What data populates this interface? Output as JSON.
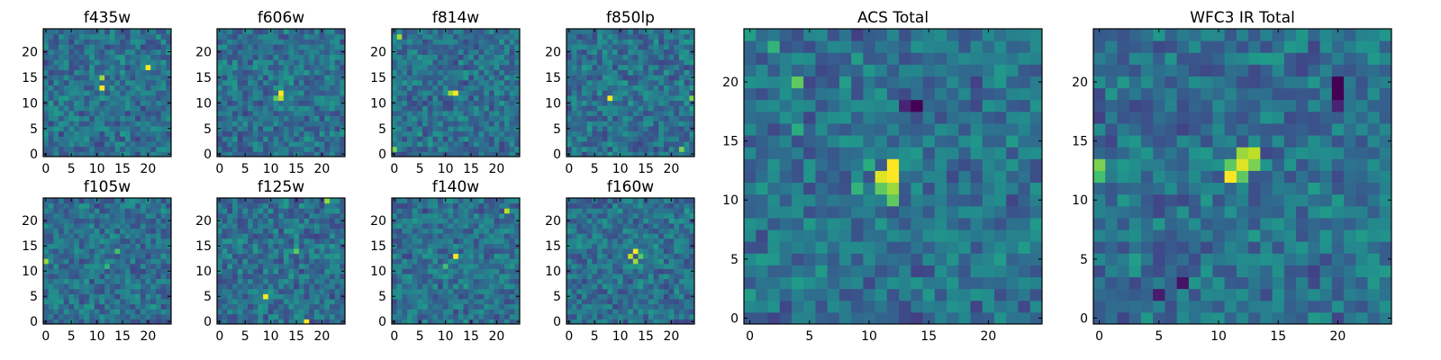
{
  "chart_data": {
    "type": "heatmap",
    "colormap": "viridis",
    "grid": false,
    "panels": [
      {
        "id": "f435w",
        "title": "f435w",
        "pixels": 25,
        "xticks": [
          0,
          5,
          10,
          15,
          20
        ],
        "yticks": [
          0,
          5,
          10,
          15,
          20
        ],
        "xlim": [
          -0.5,
          24.5
        ],
        "ylim": [
          -0.5,
          24.5
        ],
        "features": [
          {
            "x": 11,
            "y": 13,
            "value": 1.0
          },
          {
            "x": 11,
            "y": 15,
            "value": 0.85
          },
          {
            "x": 20,
            "y": 17,
            "value": 1.0
          }
        ],
        "noise_seed": 11
      },
      {
        "id": "f606w",
        "title": "f606w",
        "pixels": 25,
        "xticks": [
          0,
          5,
          10,
          15,
          20
        ],
        "yticks": [
          0,
          5,
          10,
          15,
          20
        ],
        "xlim": [
          -0.5,
          24.5
        ],
        "ylim": [
          -0.5,
          24.5
        ],
        "features": [
          {
            "x": 12,
            "y": 12,
            "value": 1.0
          },
          {
            "x": 12,
            "y": 11,
            "value": 0.9
          },
          {
            "x": 11,
            "y": 11,
            "value": 0.75
          }
        ],
        "noise_seed": 23
      },
      {
        "id": "f814w",
        "title": "f814w",
        "pixels": 25,
        "xticks": [
          0,
          5,
          10,
          15,
          20
        ],
        "yticks": [
          0,
          5,
          10,
          15,
          20
        ],
        "xlim": [
          -0.5,
          24.5
        ],
        "ylim": [
          -0.5,
          24.5
        ],
        "features": [
          {
            "x": 12,
            "y": 12,
            "value": 1.0
          },
          {
            "x": 11,
            "y": 12,
            "value": 0.85
          },
          {
            "x": 1,
            "y": 23,
            "value": 0.85
          },
          {
            "x": 0,
            "y": 1,
            "value": 0.8
          }
        ],
        "noise_seed": 37
      },
      {
        "id": "f850lp",
        "title": "f850lp",
        "pixels": 25,
        "xticks": [
          0,
          5,
          10,
          15,
          20
        ],
        "yticks": [
          0,
          5,
          10,
          15,
          20
        ],
        "xlim": [
          -0.5,
          24.5
        ],
        "ylim": [
          -0.5,
          24.5
        ],
        "features": [
          {
            "x": 8,
            "y": 11,
            "value": 1.0
          },
          {
            "x": 24,
            "y": 11,
            "value": 0.8
          },
          {
            "x": 22,
            "y": 1,
            "value": 0.8
          }
        ],
        "noise_seed": 41
      },
      {
        "id": "f105w",
        "title": "f105w",
        "pixels": 25,
        "xticks": [
          0,
          5,
          10,
          15,
          20
        ],
        "yticks": [
          0,
          5,
          10,
          15,
          20
        ],
        "xlim": [
          -0.5,
          24.5
        ],
        "ylim": [
          -0.5,
          24.5
        ],
        "features": [
          {
            "x": 0,
            "y": 12,
            "value": 0.85
          },
          {
            "x": 14,
            "y": 14,
            "value": 0.7
          },
          {
            "x": 12,
            "y": 11,
            "value": 0.65
          }
        ],
        "noise_seed": 53
      },
      {
        "id": "f125w",
        "title": "f125w",
        "pixels": 25,
        "xticks": [
          0,
          5,
          10,
          15,
          20
        ],
        "yticks": [
          0,
          5,
          10,
          15,
          20
        ],
        "xlim": [
          -0.5,
          24.5
        ],
        "ylim": [
          -0.5,
          24.5
        ],
        "features": [
          {
            "x": 9,
            "y": 5,
            "value": 1.0
          },
          {
            "x": 17,
            "y": 0,
            "value": 1.0
          },
          {
            "x": 21,
            "y": 24,
            "value": 0.85
          },
          {
            "x": 15,
            "y": 14,
            "value": 0.75
          }
        ],
        "noise_seed": 67
      },
      {
        "id": "f140w",
        "title": "f140w",
        "pixels": 25,
        "xticks": [
          0,
          5,
          10,
          15,
          20
        ],
        "yticks": [
          0,
          5,
          10,
          15,
          20
        ],
        "xlim": [
          -0.5,
          24.5
        ],
        "ylim": [
          -0.5,
          24.5
        ],
        "features": [
          {
            "x": 12,
            "y": 13,
            "value": 1.0
          },
          {
            "x": 22,
            "y": 22,
            "value": 0.9
          },
          {
            "x": 10,
            "y": 11,
            "value": 0.7
          }
        ],
        "noise_seed": 71
      },
      {
        "id": "f160w",
        "title": "f160w",
        "pixels": 25,
        "xticks": [
          0,
          5,
          10,
          15,
          20
        ],
        "yticks": [
          0,
          5,
          10,
          15,
          20
        ],
        "xlim": [
          -0.5,
          24.5
        ],
        "ylim": [
          -0.5,
          24.5
        ],
        "features": [
          {
            "x": 13,
            "y": 14,
            "value": 1.0
          },
          {
            "x": 12,
            "y": 13,
            "value": 0.9
          },
          {
            "x": 13,
            "y": 12,
            "value": 0.85
          },
          {
            "x": 14,
            "y": 13,
            "value": 0.75
          }
        ],
        "noise_seed": 83
      },
      {
        "id": "acs-total",
        "title": "ACS Total",
        "pixels": 25,
        "xticks": [
          0,
          5,
          10,
          15,
          20
        ],
        "yticks": [
          0,
          5,
          10,
          15,
          20
        ],
        "xlim": [
          -0.5,
          24.5
        ],
        "ylim": [
          -0.5,
          24.5
        ],
        "features": [
          {
            "x": 12,
            "y": 13,
            "value": 1.0
          },
          {
            "x": 12,
            "y": 12,
            "value": 1.0
          },
          {
            "x": 11,
            "y": 12,
            "value": 0.95
          },
          {
            "x": 12,
            "y": 11,
            "value": 0.85
          },
          {
            "x": 12,
            "y": 10,
            "value": 0.75
          },
          {
            "x": 11,
            "y": 11,
            "value": 0.75
          },
          {
            "x": 9,
            "y": 11,
            "value": 0.65
          },
          {
            "x": 10,
            "y": 13,
            "value": 0.62
          },
          {
            "x": 2,
            "y": 23,
            "value": 0.65
          },
          {
            "x": 4,
            "y": 20,
            "value": 0.75
          },
          {
            "x": 4,
            "y": 16,
            "value": 0.62
          },
          {
            "x": 14,
            "y": 18,
            "value": 0.0
          },
          {
            "x": 13,
            "y": 18,
            "value": 0.1
          }
        ],
        "noise_seed": 97
      },
      {
        "id": "wfc3-ir-total",
        "title": "WFC3 IR Total",
        "pixels": 25,
        "xticks": [
          0,
          5,
          10,
          15,
          20
        ],
        "yticks": [
          0,
          5,
          10,
          15,
          20
        ],
        "xlim": [
          -0.5,
          24.5
        ],
        "ylim": [
          -0.5,
          24.5
        ],
        "features": [
          {
            "x": 11,
            "y": 12,
            "value": 1.0
          },
          {
            "x": 12,
            "y": 13,
            "value": 0.95
          },
          {
            "x": 13,
            "y": 14,
            "value": 0.9
          },
          {
            "x": 12,
            "y": 14,
            "value": 0.85
          },
          {
            "x": 13,
            "y": 13,
            "value": 0.8
          },
          {
            "x": 11,
            "y": 13,
            "value": 0.75
          },
          {
            "x": 12,
            "y": 12,
            "value": 0.75
          },
          {
            "x": 0,
            "y": 13,
            "value": 0.8
          },
          {
            "x": 0,
            "y": 12,
            "value": 0.7
          },
          {
            "x": 20,
            "y": 20,
            "value": 0.0
          },
          {
            "x": 20,
            "y": 19,
            "value": 0.0
          },
          {
            "x": 20,
            "y": 18,
            "value": 0.1
          },
          {
            "x": 7,
            "y": 3,
            "value": 0.05
          },
          {
            "x": 5,
            "y": 2,
            "value": 0.08
          }
        ],
        "noise_seed": 109
      }
    ]
  }
}
